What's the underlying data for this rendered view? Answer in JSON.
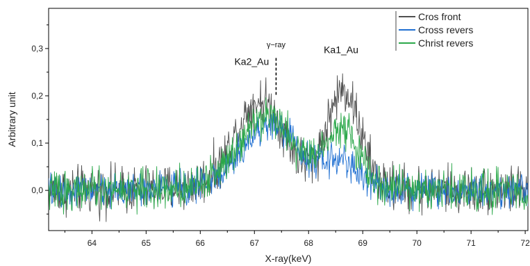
{
  "chart_data": {
    "type": "line",
    "title": "",
    "xlabel": "X-ray(keV)",
    "ylabel": "Arbitrary unit",
    "xlim": [
      63.2,
      72.05
    ],
    "ylim": [
      -0.085,
      0.385
    ],
    "x_ticks": [
      64,
      65,
      66,
      67,
      68,
      69,
      70,
      71,
      72
    ],
    "x_tick_labels": [
      "64",
      "65",
      "66",
      "67",
      "68",
      "69",
      "70",
      "71",
      "72"
    ],
    "y_ticks": [
      0.0,
      0.1,
      0.2,
      0.3
    ],
    "y_tick_labels": [
      "0,0",
      "0,1",
      "0,2",
      "0,3"
    ],
    "grid": false,
    "legend_position": "top-right",
    "series": [
      {
        "name": "Cros front",
        "color": "#505050",
        "noise": 0.031,
        "peaks": [
          {
            "center": 67.1,
            "height": 0.17,
            "width": 0.45
          },
          {
            "center": 68.65,
            "height": 0.2,
            "width": 0.3
          }
        ]
      },
      {
        "name": "Cross revers",
        "color": "#1f6fd1",
        "noise": 0.022,
        "peaks": [
          {
            "center": 67.3,
            "height": 0.12,
            "width": 0.5
          },
          {
            "center": 68.6,
            "height": 0.05,
            "width": 0.3
          }
        ]
      },
      {
        "name": "Christ revers",
        "color": "#2ba84a",
        "noise": 0.026,
        "peaks": [
          {
            "center": 67.2,
            "height": 0.14,
            "width": 0.5
          },
          {
            "center": 68.6,
            "height": 0.12,
            "width": 0.3
          }
        ]
      }
    ],
    "annotations": [
      {
        "text": "Ka2_Au",
        "x": 66.95,
        "y": 0.265
      },
      {
        "text": "Ka1_Au",
        "x": 68.6,
        "y": 0.29
      },
      {
        "text": "γ−ray",
        "x": 67.4,
        "y": 0.3,
        "marker_x": 67.4,
        "marker_from": 0.28,
        "marker_to": 0.2
      }
    ]
  }
}
